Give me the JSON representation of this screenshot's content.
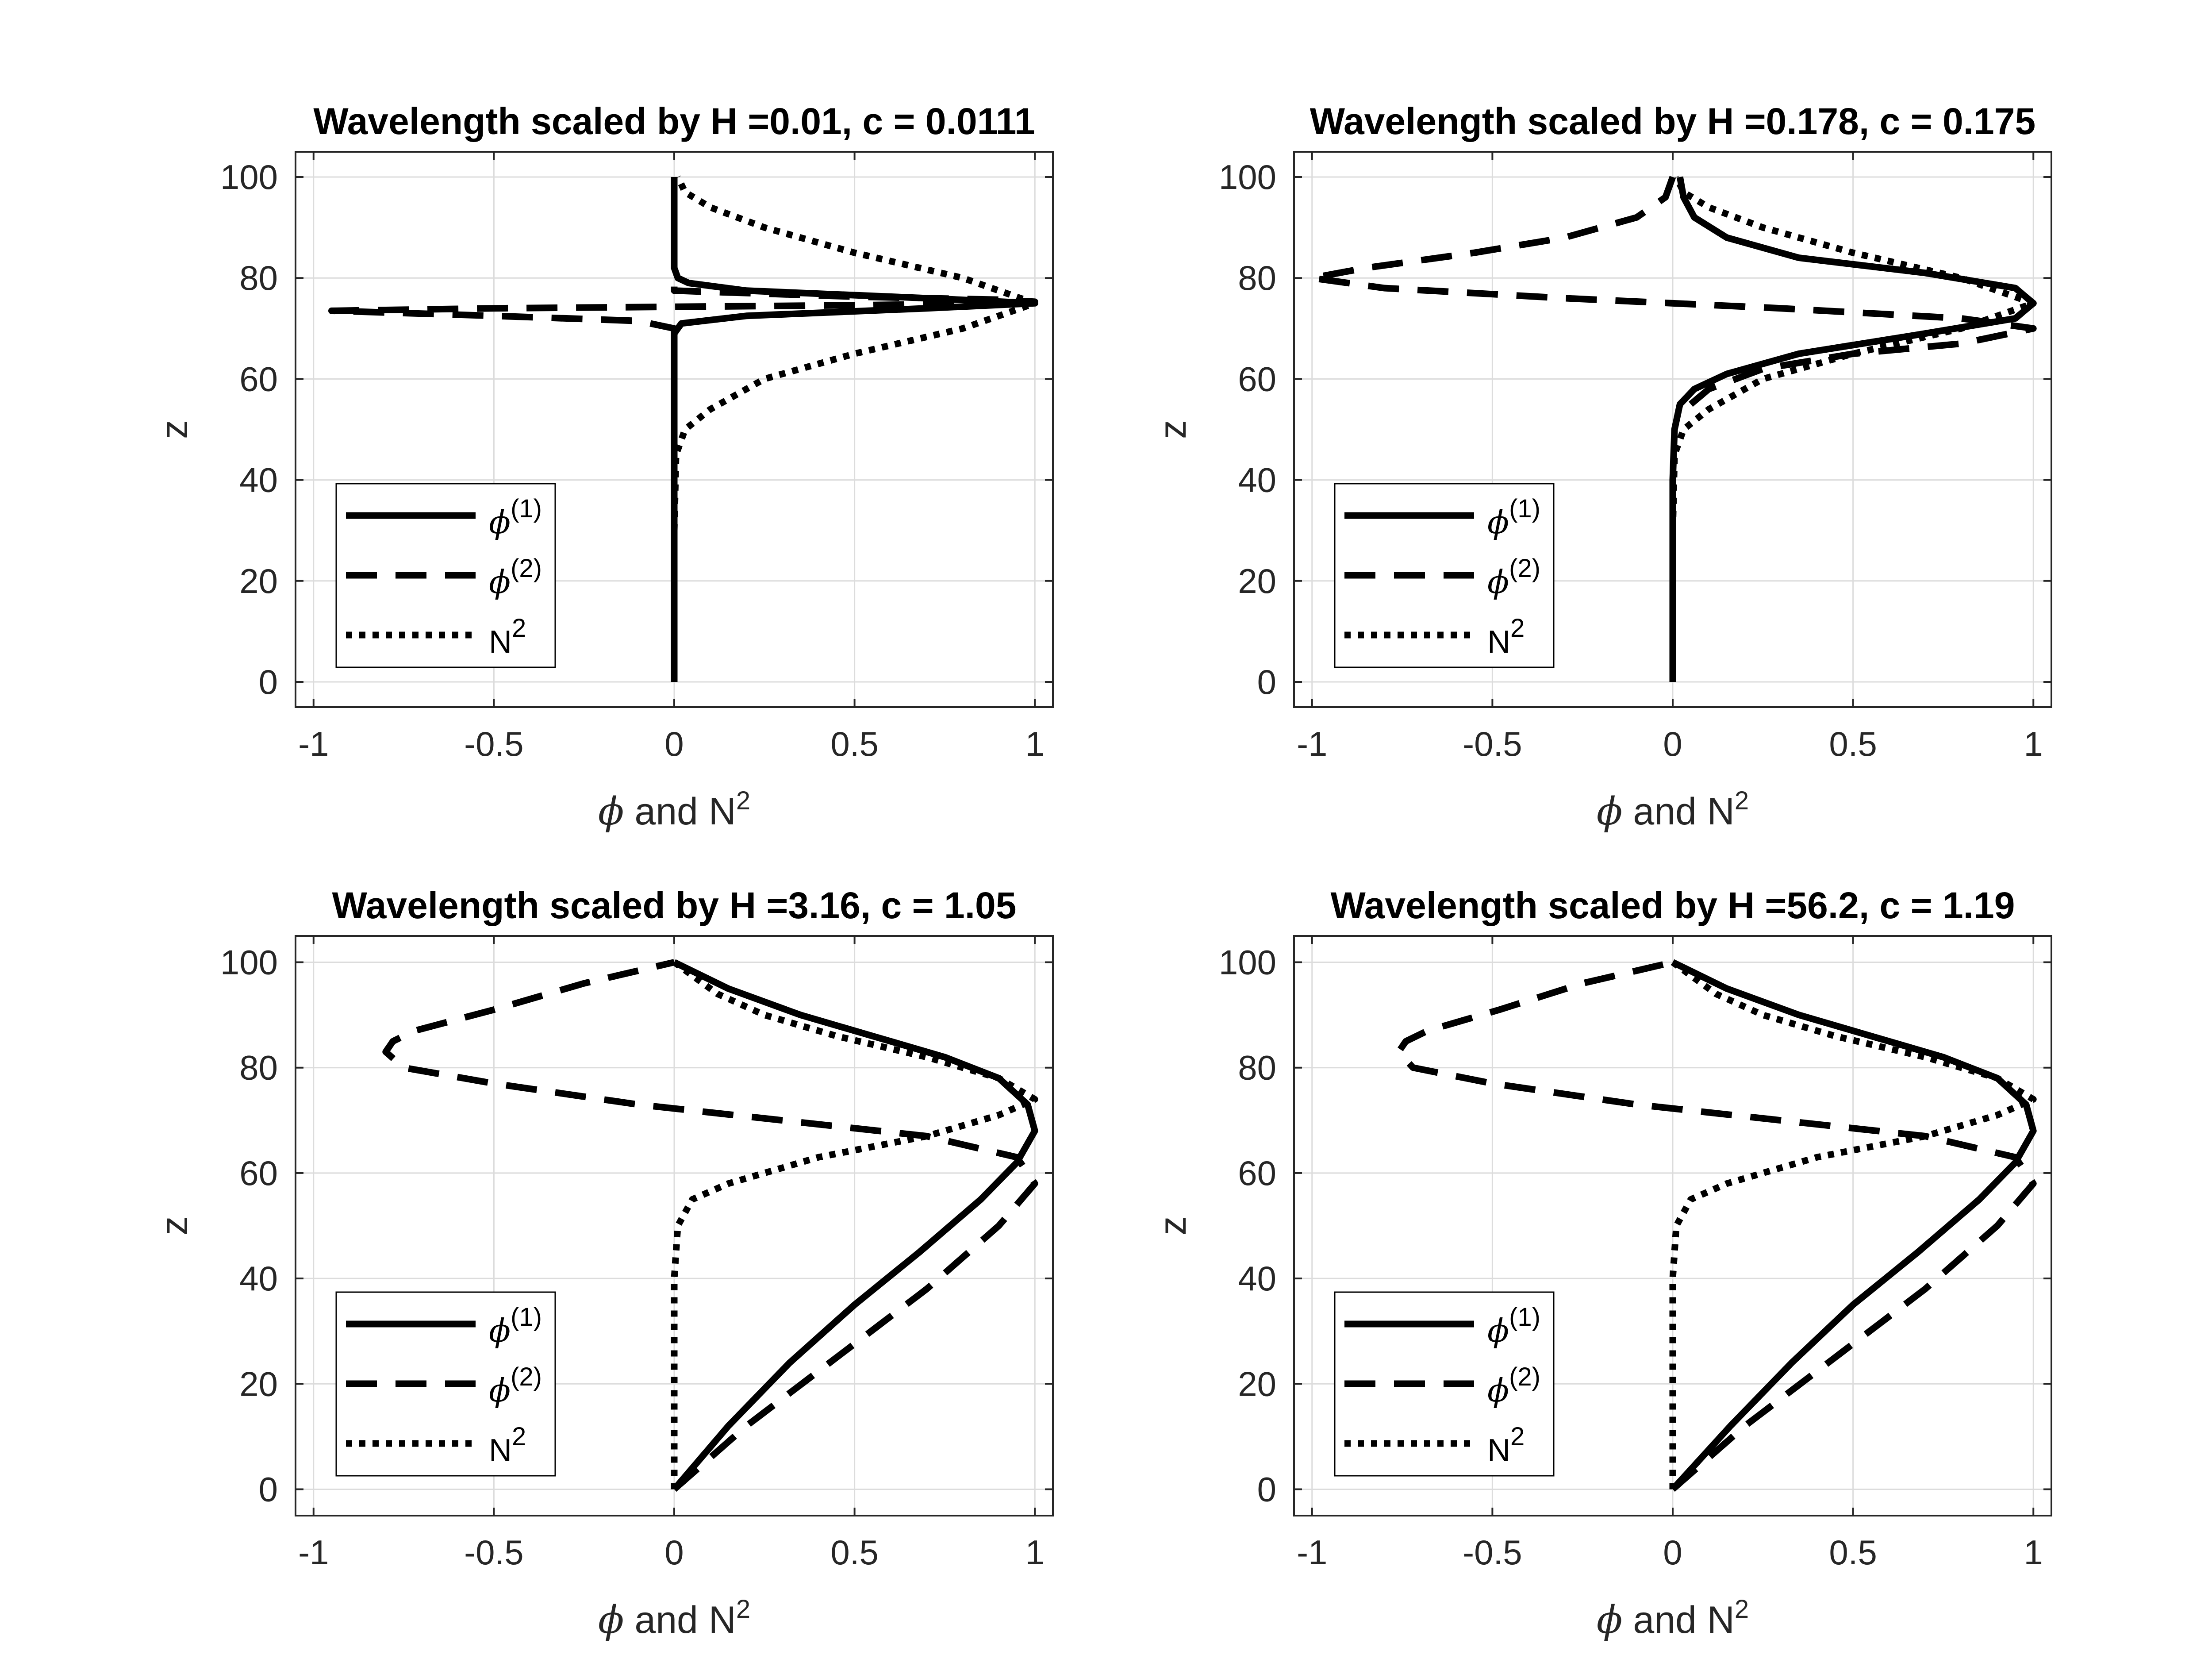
{
  "figure": {
    "layout": "2x2"
  },
  "chart_data": [
    {
      "type": "line",
      "title": "Wavelength scaled by H =0.01, c = 0.0111",
      "xlabel": "ϕ and N²",
      "xlabel_main": " and N",
      "xlabel_phi": "ϕ",
      "xlabel_sup": "2",
      "ylabel": "z",
      "xlim": [
        -1.05,
        1.05
      ],
      "ylim": [
        -5,
        105
      ],
      "xticks": [
        -1,
        -0.5,
        0,
        0.5,
        1
      ],
      "xtick_labels": [
        "-1",
        "-0.5",
        "0",
        "0.5",
        "1"
      ],
      "yticks": [
        0,
        20,
        40,
        60,
        80,
        100
      ],
      "ytick_labels": [
        "0",
        "20",
        "40",
        "60",
        "80",
        "100"
      ],
      "grid": true,
      "legend_placement": "bottom-left",
      "legend": [
        {
          "label_base": "ϕ",
          "label_sup": "(1)",
          "style": "solid"
        },
        {
          "label_base": "ϕ",
          "label_sup": "(2)",
          "style": "dashed"
        },
        {
          "label_base": "N",
          "label_sup": "2",
          "style": "dotted"
        }
      ],
      "series": [
        {
          "style": "solid",
          "x": [
            0,
            0,
            0,
            0.01,
            0.02,
            0.2,
            0.7,
            1,
            0.7,
            0.2,
            0.04,
            0.01,
            0,
            0,
            0
          ],
          "y": [
            0,
            40,
            69,
            70,
            71,
            72.5,
            74,
            75,
            76,
            77.5,
            79,
            80,
            82,
            95,
            100
          ]
        },
        {
          "style": "dashed",
          "x": [
            0,
            0,
            0,
            -0.1,
            -0.5,
            -0.95,
            -0.5,
            0,
            0.5,
            0.9,
            1,
            0.9,
            0.5,
            0,
            0,
            0
          ],
          "y": [
            0,
            50,
            70,
            71.5,
            72.5,
            73.5,
            74,
            74.3,
            74.6,
            75,
            75.3,
            75.7,
            76.3,
            77.5,
            85,
            100
          ]
        },
        {
          "style": "dotted",
          "x": [
            0,
            0.005,
            0.03,
            0.1,
            0.25,
            0.5,
            0.8,
            1,
            0.8,
            0.5,
            0.25,
            0.1,
            0.03,
            0.01
          ],
          "y": [
            30,
            45,
            50,
            54,
            60,
            65,
            70,
            75,
            80,
            85,
            90,
            94,
            97,
            100
          ]
        }
      ]
    },
    {
      "type": "line",
      "title": "Wavelength scaled by H =0.178, c = 0.175",
      "xlabel": "ϕ and N²",
      "xlabel_main": " and N",
      "xlabel_phi": "ϕ",
      "xlabel_sup": "2",
      "ylabel": "z",
      "xlim": [
        -1.05,
        1.05
      ],
      "ylim": [
        -5,
        105
      ],
      "xticks": [
        -1,
        -0.5,
        0,
        0.5,
        1
      ],
      "xtick_labels": [
        "-1",
        "-0.5",
        "0",
        "0.5",
        "1"
      ],
      "yticks": [
        0,
        20,
        40,
        60,
        80,
        100
      ],
      "ytick_labels": [
        "0",
        "20",
        "40",
        "60",
        "80",
        "100"
      ],
      "grid": true,
      "legend_placement": "bottom-left",
      "legend": [
        {
          "label_base": "ϕ",
          "label_sup": "(1)",
          "style": "solid"
        },
        {
          "label_base": "ϕ",
          "label_sup": "(2)",
          "style": "dashed"
        },
        {
          "label_base": "N",
          "label_sup": "2",
          "style": "dotted"
        }
      ],
      "series": [
        {
          "style": "solid",
          "x": [
            0,
            0,
            0.005,
            0.02,
            0.06,
            0.15,
            0.35,
            0.7,
            0.95,
            1,
            0.95,
            0.7,
            0.35,
            0.15,
            0.06,
            0.03,
            0.02
          ],
          "y": [
            0,
            40,
            50,
            55,
            58,
            61,
            65,
            69,
            72,
            75,
            78,
            81,
            84,
            88,
            92,
            96,
            100
          ]
        },
        {
          "style": "dashed",
          "x": [
            0.05,
            0.1,
            0.25,
            0.5,
            0.8,
            1,
            0.8,
            0.3,
            -0.3,
            -0.8,
            -1,
            -0.85,
            -0.55,
            -0.3,
            -0.1,
            -0.02,
            0
          ],
          "y": [
            55,
            58,
            62,
            65,
            67,
            70,
            72,
            74,
            76,
            78,
            80,
            82,
            85,
            88,
            92,
            96,
            100
          ]
        },
        {
          "style": "dotted",
          "x": [
            0,
            0.005,
            0.03,
            0.1,
            0.25,
            0.5,
            0.8,
            1,
            0.8,
            0.5,
            0.25,
            0.1,
            0.03,
            0.01
          ],
          "y": [
            30,
            45,
            50,
            54,
            60,
            65,
            70,
            75,
            80,
            85,
            90,
            94,
            97,
            100
          ]
        }
      ]
    },
    {
      "type": "line",
      "title": "Wavelength scaled by H =3.16, c = 1.05",
      "xlabel": "ϕ and N²",
      "xlabel_main": " and N",
      "xlabel_phi": "ϕ",
      "xlabel_sup": "2",
      "ylabel": "z",
      "xlim": [
        -1.05,
        1.05
      ],
      "ylim": [
        -5,
        105
      ],
      "xticks": [
        -1,
        -0.5,
        0,
        0.5,
        1
      ],
      "xtick_labels": [
        "-1",
        "-0.5",
        "0",
        "0.5",
        "1"
      ],
      "yticks": [
        0,
        20,
        40,
        60,
        80,
        100
      ],
      "ytick_labels": [
        "0",
        "20",
        "40",
        "60",
        "80",
        "100"
      ],
      "grid": true,
      "legend_placement": "bottom-left",
      "legend": [
        {
          "label_base": "ϕ",
          "label_sup": "(1)",
          "style": "solid"
        },
        {
          "label_base": "ϕ",
          "label_sup": "(2)",
          "style": "dashed"
        },
        {
          "label_base": "N",
          "label_sup": "2",
          "style": "dotted"
        }
      ],
      "series": [
        {
          "style": "solid",
          "x": [
            0,
            0.15,
            0.32,
            0.5,
            0.68,
            0.85,
            0.95,
            1,
            0.98,
            0.9,
            0.75,
            0.55,
            0.35,
            0.15,
            0
          ],
          "y": [
            0,
            12,
            24,
            35,
            45,
            55,
            62,
            68,
            73,
            78,
            82,
            86,
            90,
            95,
            100
          ]
        },
        {
          "style": "dashed",
          "x": [
            0,
            0.2,
            0.45,
            0.7,
            0.9,
            1,
            0.95,
            0.7,
            0.3,
            -0.1,
            -0.5,
            -0.75,
            -0.8,
            -0.78,
            -0.72,
            -0.5,
            -0.25,
            0
          ],
          "y": [
            0,
            12,
            25,
            38,
            50,
            58,
            63,
            67,
            70,
            73,
            77,
            80,
            83,
            85,
            87,
            91,
            96,
            100
          ]
        },
        {
          "style": "dotted",
          "x": [
            0,
            0,
            0.01,
            0.05,
            0.15,
            0.4,
            0.7,
            0.9,
            1,
            0.9,
            0.7,
            0.45,
            0.25,
            0.12,
            0.04,
            0
          ],
          "y": [
            0,
            40,
            50,
            55,
            58,
            63,
            67,
            71,
            74,
            78,
            82,
            86,
            90,
            94,
            98,
            100
          ]
        }
      ]
    },
    {
      "type": "line",
      "title": "Wavelength scaled by H =56.2, c = 1.19",
      "xlabel": "ϕ and N²",
      "xlabel_main": " and N",
      "xlabel_phi": "ϕ",
      "xlabel_sup": "2",
      "ylabel": "z",
      "xlim": [
        -1.05,
        1.05
      ],
      "ylim": [
        -5,
        105
      ],
      "xticks": [
        -1,
        -0.5,
        0,
        0.5,
        1
      ],
      "xtick_labels": [
        "-1",
        "-0.5",
        "0",
        "0.5",
        "1"
      ],
      "yticks": [
        0,
        20,
        40,
        60,
        80,
        100
      ],
      "ytick_labels": [
        "0",
        "20",
        "40",
        "60",
        "80",
        "100"
      ],
      "grid": true,
      "legend_placement": "bottom-left",
      "legend": [
        {
          "label_base": "ϕ",
          "label_sup": "(1)",
          "style": "solid"
        },
        {
          "label_base": "ϕ",
          "label_sup": "(2)",
          "style": "dashed"
        },
        {
          "label_base": "N",
          "label_sup": "2",
          "style": "dotted"
        }
      ],
      "series": [
        {
          "style": "solid",
          "x": [
            0,
            0.16,
            0.33,
            0.5,
            0.68,
            0.85,
            0.95,
            1,
            0.98,
            0.9,
            0.75,
            0.55,
            0.35,
            0.15,
            0
          ],
          "y": [
            0,
            12,
            24,
            35,
            45,
            55,
            62,
            68,
            73,
            78,
            82,
            86,
            90,
            95,
            100
          ]
        },
        {
          "style": "dashed",
          "x": [
            0,
            0.2,
            0.45,
            0.7,
            0.9,
            1,
            0.95,
            0.7,
            0.3,
            -0.1,
            -0.5,
            -0.72,
            -0.76,
            -0.74,
            -0.68,
            -0.48,
            -0.25,
            0
          ],
          "y": [
            0,
            12,
            25,
            38,
            50,
            58,
            63,
            67,
            70,
            73,
            77,
            80,
            83,
            85,
            87,
            91,
            96,
            100
          ]
        },
        {
          "style": "dotted",
          "x": [
            0,
            0,
            0.01,
            0.05,
            0.15,
            0.4,
            0.7,
            0.9,
            1,
            0.9,
            0.7,
            0.45,
            0.25,
            0.12,
            0.04,
            0
          ],
          "y": [
            0,
            40,
            50,
            55,
            58,
            63,
            67,
            71,
            74,
            78,
            82,
            86,
            90,
            94,
            98,
            100
          ]
        }
      ]
    }
  ]
}
